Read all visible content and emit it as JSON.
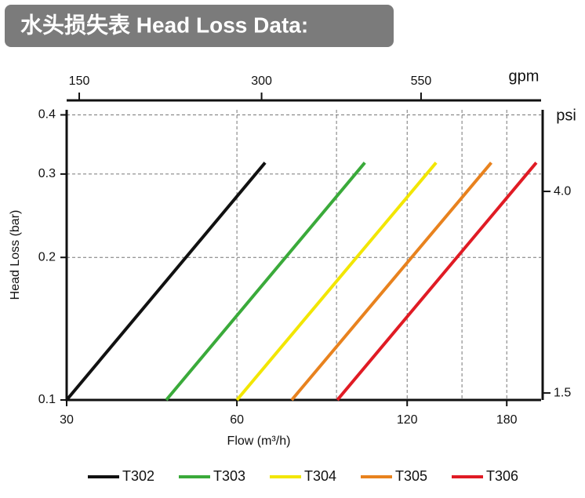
{
  "chart_data": {
    "type": "line",
    "title": "水头损失表  Head Loss Data:",
    "xlabel": "Flow (m³/h)",
    "ylabel": "Head Loss (bar)",
    "x2label": "gpm",
    "y2label": "psi",
    "xscale": "log",
    "yscale": "log",
    "xlim": [
      30,
      207
    ],
    "xticks": [
      30,
      60,
      120,
      180
    ],
    "xgrid": [
      60,
      90,
      120,
      150,
      180
    ],
    "ylim": [
      0.1,
      0.41
    ],
    "yticks": [
      0.1,
      0.2,
      0.3,
      0.4
    ],
    "x2lim": [
      143,
      868
    ],
    "x2ticks": [
      150,
      300,
      550
    ],
    "y2lim": [
      1.45,
      5.95
    ],
    "y2ticks": [
      {
        "value": 4,
        "label": "4.0"
      },
      1.5
    ],
    "grid": true,
    "legend": "bottom",
    "series": [
      {
        "name": "T302",
        "color": "#111111",
        "x": [
          30,
          67.3
        ],
        "values": [
          0.1,
          0.317
        ]
      },
      {
        "name": "T303",
        "color": "#3aaa3a",
        "x": [
          45,
          101
        ],
        "values": [
          0.1,
          0.317
        ]
      },
      {
        "name": "T304",
        "color": "#f2e600",
        "x": [
          60,
          135
        ],
        "values": [
          0.1,
          0.317
        ]
      },
      {
        "name": "T305",
        "color": "#e8821e",
        "x": [
          75,
          169
        ],
        "values": [
          0.1,
          0.317
        ]
      },
      {
        "name": "T306",
        "color": "#e01b24",
        "x": [
          90.3,
          203
        ],
        "values": [
          0.1,
          0.317
        ]
      }
    ]
  }
}
